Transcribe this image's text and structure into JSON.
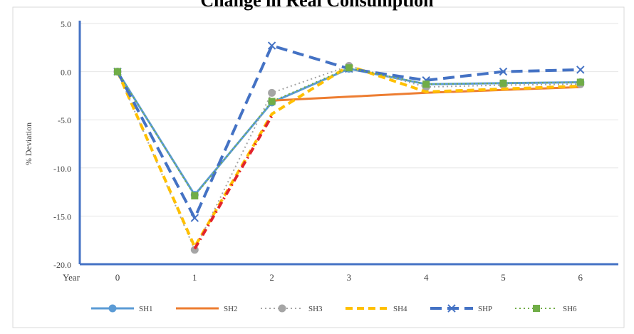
{
  "chart_data": {
    "type": "line",
    "title": "Change in Real Consumption",
    "xlabel": "",
    "ylabel": "% Deviation",
    "x_axis_prefix": "Year",
    "categories": [
      "0",
      "1",
      "2",
      "3",
      "4",
      "5",
      "6"
    ],
    "y_ticks": [
      "5.0",
      "0.0",
      "-5.0",
      "-10.0",
      "-15.0",
      "-20.0"
    ],
    "ylim": [
      -20,
      5
    ],
    "grid": true,
    "legend_position": "bottom",
    "series": [
      {
        "name": "SH1",
        "color": "#5b9bd5",
        "dash": "solid",
        "marker": "circle",
        "values": [
          0.0,
          -12.8,
          -3.2,
          0.3,
          -1.3,
          -1.2,
          -1.1
        ]
      },
      {
        "name": "SH2",
        "color": "#ed7d31",
        "dash": "solid",
        "marker": "none",
        "values": [
          null,
          null,
          -3.0,
          -2.6,
          -2.2,
          -1.9,
          -1.6
        ]
      },
      {
        "name": "SH3",
        "color": "#a5a5a5",
        "dash": "dot",
        "marker": "circle",
        "values": [
          0.0,
          -18.5,
          -2.2,
          0.6,
          -1.6,
          -1.4,
          -1.3
        ]
      },
      {
        "name": "SH4",
        "color": "#ffc000",
        "dash": "dash",
        "marker": "none",
        "values": [
          0.0,
          -18.2,
          -4.4,
          0.6,
          -2.1,
          -1.8,
          -1.5
        ]
      },
      {
        "name": "SHP",
        "color": "#4472c4",
        "dash": "longdash",
        "marker": "x",
        "values": [
          0.0,
          -15.2,
          2.7,
          0.3,
          -0.9,
          0.0,
          0.2
        ]
      },
      {
        "name": "SH6",
        "color": "#70ad47",
        "dash": "dot",
        "marker": "square",
        "values": [
          0.0,
          -12.9,
          -3.1,
          0.4,
          -1.3,
          -1.2,
          -1.1
        ]
      },
      {
        "name": "",
        "color": "#e3242b",
        "dash": "dashdot",
        "marker": "none",
        "legend": false,
        "values": [
          null,
          -18.4,
          -4.6,
          null,
          null,
          null,
          null
        ]
      }
    ]
  }
}
